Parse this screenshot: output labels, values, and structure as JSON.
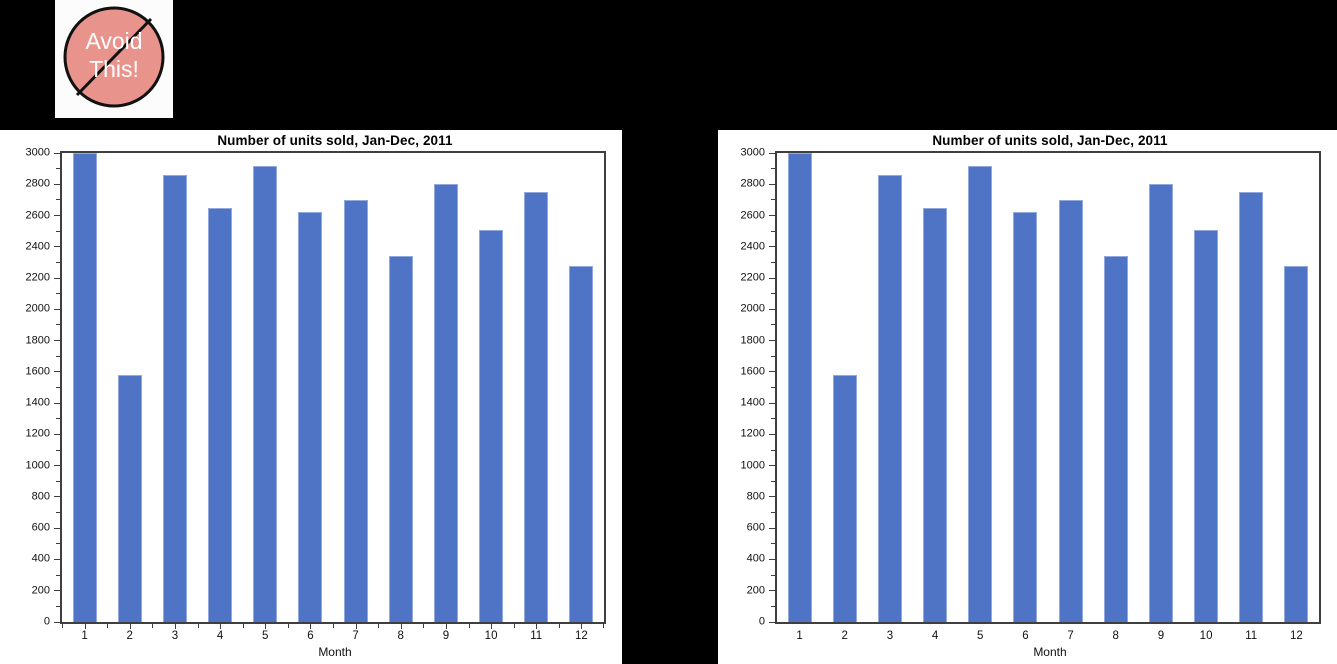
{
  "canvas": {
    "background": "#000000",
    "panel_background": "#ffffff"
  },
  "badge": {
    "line1": "Avoid",
    "line2": "This!",
    "circle_fill": "#E8938C",
    "outline_color": "#111111",
    "text_color": "#FFFFFF"
  },
  "chart_data": [
    {
      "type": "bar",
      "title": "Number of units sold, Jan-Dec, 2011",
      "xlabel": "Month",
      "ylabel": "",
      "categories": [
        "1",
        "2",
        "3",
        "4",
        "5",
        "6",
        "7",
        "8",
        "9",
        "10",
        "11",
        "12"
      ],
      "values": [
        3000,
        1580,
        2860,
        2650,
        2920,
        2620,
        2700,
        2340,
        2800,
        2510,
        2750,
        2280
      ],
      "ylim": [
        0,
        3000
      ],
      "y_major_step": 200,
      "y_minor_step": 100,
      "y_tick_labels": [
        "0",
        "200",
        "400",
        "600",
        "800",
        "1000",
        "1200",
        "1400",
        "1600",
        "1800",
        "2000",
        "2200",
        "2400",
        "2600",
        "2800",
        "3000"
      ],
      "x_axis_ticks": true,
      "bar_color": "#4F74C5",
      "grid": false,
      "legend": "none"
    },
    {
      "type": "bar",
      "title": "Number of units sold, Jan-Dec, 2011",
      "xlabel": "Month",
      "ylabel": "",
      "categories": [
        "1",
        "2",
        "3",
        "4",
        "5",
        "6",
        "7",
        "8",
        "9",
        "10",
        "11",
        "12"
      ],
      "values": [
        3000,
        1580,
        2860,
        2650,
        2920,
        2620,
        2700,
        2340,
        2800,
        2510,
        2750,
        2280
      ],
      "ylim": [
        0,
        3000
      ],
      "y_major_step": 200,
      "y_minor_step": 100,
      "y_tick_labels": [
        "0",
        "200",
        "400",
        "600",
        "800",
        "1000",
        "1200",
        "1400",
        "1600",
        "1800",
        "2000",
        "2200",
        "2400",
        "2600",
        "2800",
        "3000"
      ],
      "x_axis_ticks": false,
      "bar_color": "#4F74C5",
      "grid": false,
      "legend": "none"
    }
  ]
}
